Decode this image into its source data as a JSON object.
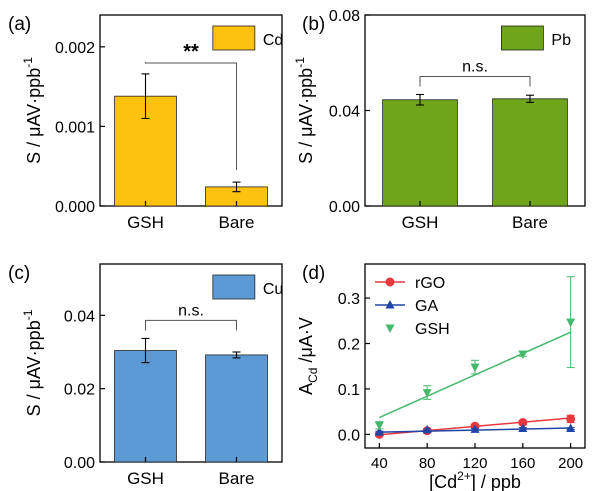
{
  "chart_data": [
    {
      "type": "bar",
      "panel_label": "(a)",
      "categories": [
        "GSH",
        "Bare"
      ],
      "values": [
        0.00138,
        0.00024
      ],
      "errors": [
        0.00028,
        6e-05
      ],
      "ylabel_main": "S / μAV·ppb",
      "ylabel_sup": "-1",
      "yticks": [
        "0.000",
        "0.001",
        "0.002"
      ],
      "ylim": [
        0,
        0.0024
      ],
      "legend": "Cd",
      "color": "#FDC20F",
      "significance": "**"
    },
    {
      "type": "bar",
      "panel_label": "(b)",
      "categories": [
        "GSH",
        "Bare"
      ],
      "values": [
        0.0445,
        0.0449
      ],
      "errors": [
        0.0022,
        0.0015
      ],
      "ylabel_main": "S / μAV·ppb",
      "ylabel_sup": "-1",
      "yticks": [
        "0.00",
        "0.04",
        "0.08"
      ],
      "ylim": [
        0,
        0.08
      ],
      "legend": "Pb",
      "color": "#6FA51A",
      "significance": "n.s."
    },
    {
      "type": "bar",
      "panel_label": "(c)",
      "categories": [
        "GSH",
        "Bare"
      ],
      "values": [
        0.0304,
        0.0292
      ],
      "errors": [
        0.0033,
        0.0008
      ],
      "ylabel_main": "S / μAV·ppb",
      "ylabel_sup": "-1",
      "yticks": [
        "0.00",
        "0.02",
        "0.04"
      ],
      "ylim": [
        0,
        0.054
      ],
      "legend": "Cu",
      "color": "#5B9AD5",
      "significance": "n.s."
    },
    {
      "type": "scatter",
      "panel_label": "(d)",
      "ylabel_main": "A",
      "ylabel_sub": "Cd",
      "ylabel_rest": " /μA·V",
      "xlabel_pre": "[Cd",
      "xlabel_sup": "2+",
      "xlabel_post": "] / ppb",
      "xticks": [
        "40",
        "80",
        "120",
        "160",
        "200"
      ],
      "yticks": [
        "0.0",
        "0.1",
        "0.2",
        "0.3"
      ],
      "xlim": [
        28,
        212
      ],
      "ylim": [
        -0.03,
        0.375
      ],
      "series": [
        {
          "name": "rGO",
          "color": "#E8383D",
          "marker": "circle",
          "x": [
            40,
            80,
            120,
            160,
            200
          ],
          "y": [
            0.0,
            0.008,
            0.018,
            0.026,
            0.034
          ],
          "err": [
            0.004,
            0.004,
            0.004,
            0.004,
            0.008
          ],
          "fit": [
            [
              40,
              -0.001
            ],
            [
              200,
              0.036
            ]
          ]
        },
        {
          "name": "GA",
          "color": "#1F45A6",
          "marker": "triangle-up",
          "x": [
            40,
            80,
            120,
            160,
            200
          ],
          "y": [
            0.005,
            0.01,
            0.011,
            0.013,
            0.013
          ],
          "err": [
            0.002,
            0.002,
            0.002,
            0.002,
            0.002
          ],
          "fit": [
            [
              40,
              0.005
            ],
            [
              200,
              0.014
            ]
          ]
        },
        {
          "name": "GSH",
          "color": "#45B86C",
          "marker": "triangle-down",
          "x": [
            40,
            80,
            120,
            160,
            200
          ],
          "y": [
            0.02,
            0.092,
            0.148,
            0.177,
            0.247
          ],
          "err": [
            0.008,
            0.015,
            0.015,
            0.005,
            0.1
          ],
          "fit": [
            [
              40,
              0.037
            ],
            [
              200,
              0.225
            ]
          ]
        }
      ]
    }
  ]
}
